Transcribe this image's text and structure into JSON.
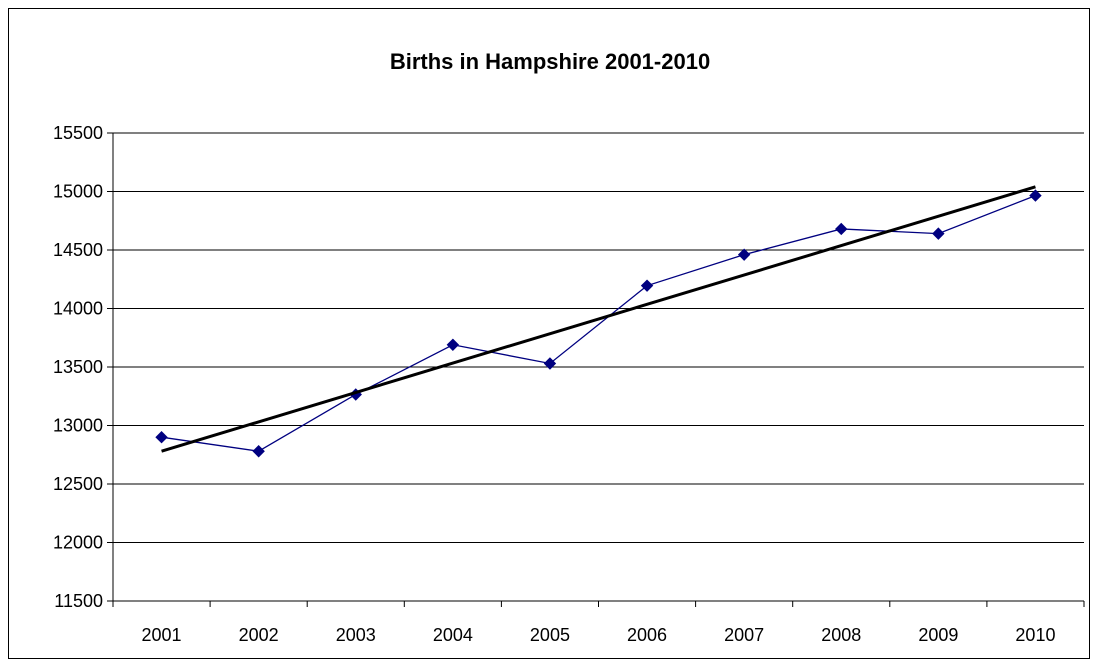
{
  "chart_data": {
    "type": "line",
    "title": "Births in Hampshire 2001-2010",
    "xlabel": "",
    "ylabel": "",
    "categories": [
      "2001",
      "2002",
      "2003",
      "2004",
      "2005",
      "2006",
      "2007",
      "2008",
      "2009",
      "2010"
    ],
    "series": [
      {
        "values": [
          12900,
          12780,
          13265,
          13690,
          13530,
          14195,
          14460,
          14680,
          14640,
          14965
        ],
        "color": "#000080",
        "marker": "diamond"
      }
    ],
    "trendline": {
      "type": "linear",
      "start": 12780,
      "end": 15040,
      "color": "#000000"
    },
    "ylim": [
      11500,
      15500
    ],
    "yticks": [
      11500,
      12000,
      12500,
      13000,
      13500,
      14000,
      14500,
      15000,
      15500
    ],
    "grid": true,
    "legend": "none"
  }
}
